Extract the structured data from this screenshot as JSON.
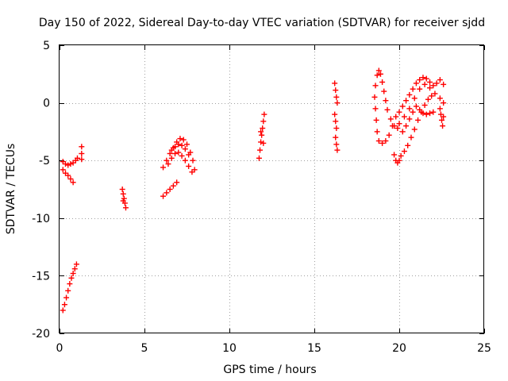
{
  "chart_data": {
    "type": "scatter",
    "title": "Day 150 of 2022, Sidereal Day-to-day VTEC variation (SDTVAR) for receiver sjdd",
    "xlabel": "GPS time / hours",
    "ylabel": "SDTVAR / TECUs",
    "xlim": [
      0,
      25
    ],
    "ylim": [
      -20,
      5
    ],
    "xticks": [
      0,
      5,
      10,
      15,
      20,
      25
    ],
    "yticks": [
      -20,
      -15,
      -10,
      -5,
      0,
      5
    ],
    "grid": true,
    "marker": "plus",
    "color": "#ff0000",
    "series": [
      {
        "name": "sdtvar",
        "points": [
          [
            0.2,
            -18.0
          ],
          [
            0.3,
            -17.5
          ],
          [
            0.4,
            -16.9
          ],
          [
            0.5,
            -16.3
          ],
          [
            0.6,
            -15.7
          ],
          [
            0.7,
            -15.2
          ],
          [
            0.8,
            -14.8
          ],
          [
            0.9,
            -14.4
          ],
          [
            1.0,
            -14.0
          ],
          [
            0.2,
            -5.8
          ],
          [
            0.35,
            -6.1
          ],
          [
            0.5,
            -6.3
          ],
          [
            0.65,
            -6.6
          ],
          [
            0.8,
            -6.9
          ],
          [
            0.2,
            -5.1
          ],
          [
            0.35,
            -5.3
          ],
          [
            0.5,
            -5.4
          ],
          [
            0.65,
            -5.3
          ],
          [
            0.8,
            -5.2
          ],
          [
            0.95,
            -5.0
          ],
          [
            1.05,
            -4.8
          ],
          [
            1.3,
            -3.8
          ],
          [
            1.3,
            -4.4
          ],
          [
            1.3,
            -4.9
          ],
          [
            3.7,
            -7.5
          ],
          [
            3.75,
            -7.9
          ],
          [
            3.8,
            -8.3
          ],
          [
            3.85,
            -8.7
          ],
          [
            3.9,
            -9.1
          ],
          [
            3.75,
            -8.5
          ],
          [
            6.1,
            -8.1
          ],
          [
            6.3,
            -7.8
          ],
          [
            6.5,
            -7.5
          ],
          [
            6.7,
            -7.2
          ],
          [
            6.9,
            -6.9
          ],
          [
            6.1,
            -5.6
          ],
          [
            6.3,
            -5.0
          ],
          [
            6.5,
            -4.4
          ],
          [
            6.7,
            -3.9
          ],
          [
            6.9,
            -3.4
          ],
          [
            7.1,
            -3.1
          ],
          [
            7.3,
            -3.2
          ],
          [
            7.5,
            -3.6
          ],
          [
            7.7,
            -4.3
          ],
          [
            7.85,
            -5.0
          ],
          [
            7.95,
            -5.8
          ],
          [
            6.4,
            -5.3
          ],
          [
            6.6,
            -4.8
          ],
          [
            6.8,
            -4.4
          ],
          [
            7.0,
            -4.3
          ],
          [
            7.2,
            -4.6
          ],
          [
            7.4,
            -5.0
          ],
          [
            7.6,
            -5.5
          ],
          [
            7.8,
            -6.0
          ],
          [
            6.6,
            -4.1
          ],
          [
            6.8,
            -3.8
          ],
          [
            7.0,
            -3.6
          ],
          [
            7.2,
            -3.7
          ],
          [
            7.4,
            -4.0
          ],
          [
            7.6,
            -4.5
          ],
          [
            11.75,
            -4.8
          ],
          [
            11.8,
            -4.1
          ],
          [
            11.85,
            -3.4
          ],
          [
            11.9,
            -2.8
          ],
          [
            11.95,
            -2.2
          ],
          [
            12.0,
            -1.6
          ],
          [
            12.05,
            -1.0
          ],
          [
            11.85,
            -2.5
          ],
          [
            12.0,
            -3.5
          ],
          [
            16.2,
            1.7
          ],
          [
            16.25,
            1.1
          ],
          [
            16.3,
            0.5
          ],
          [
            16.35,
            0.0
          ],
          [
            16.2,
            -1.0
          ],
          [
            16.25,
            -1.6
          ],
          [
            16.3,
            -2.2
          ],
          [
            16.25,
            -3.0
          ],
          [
            16.3,
            -3.6
          ],
          [
            16.35,
            -4.1
          ],
          [
            18.7,
            2.4
          ],
          [
            18.8,
            2.8
          ],
          [
            18.9,
            2.5
          ],
          [
            19.0,
            1.8
          ],
          [
            19.1,
            1.0
          ],
          [
            19.2,
            0.2
          ],
          [
            19.3,
            -0.6
          ],
          [
            19.5,
            -1.4
          ],
          [
            19.7,
            -2.0
          ],
          [
            19.9,
            -2.2
          ],
          [
            18.6,
            1.5
          ],
          [
            18.55,
            0.5
          ],
          [
            18.6,
            -0.5
          ],
          [
            18.65,
            -1.5
          ],
          [
            18.7,
            -2.5
          ],
          [
            18.8,
            -3.3
          ],
          [
            19.0,
            -3.5
          ],
          [
            19.2,
            -3.3
          ],
          [
            19.4,
            -2.8
          ],
          [
            19.6,
            -2.0
          ],
          [
            19.8,
            -1.2
          ],
          [
            20.0,
            -0.8
          ],
          [
            20.2,
            -0.3
          ],
          [
            20.4,
            0.2
          ],
          [
            20.6,
            0.7
          ],
          [
            20.8,
            1.2
          ],
          [
            21.0,
            1.7
          ],
          [
            21.2,
            2.0
          ],
          [
            21.4,
            2.2
          ],
          [
            21.6,
            2.1
          ],
          [
            21.8,
            1.8
          ],
          [
            22.0,
            1.5
          ],
          [
            22.2,
            1.7
          ],
          [
            22.4,
            2.0
          ],
          [
            22.6,
            1.6
          ],
          [
            19.7,
            -4.5
          ],
          [
            19.8,
            -5.0
          ],
          [
            19.9,
            -5.2
          ],
          [
            20.0,
            -5.0
          ],
          [
            20.1,
            -4.6
          ],
          [
            20.3,
            -4.2
          ],
          [
            20.5,
            -3.7
          ],
          [
            20.7,
            -3.0
          ],
          [
            20.9,
            -2.3
          ],
          [
            21.1,
            -1.5
          ],
          [
            21.3,
            -0.8
          ],
          [
            21.5,
            -0.2
          ],
          [
            21.7,
            0.3
          ],
          [
            21.9,
            0.6
          ],
          [
            20.2,
            -2.5
          ],
          [
            20.4,
            -2.0
          ],
          [
            20.6,
            -1.4
          ],
          [
            20.8,
            -0.8
          ],
          [
            21.0,
            -0.3
          ],
          [
            21.2,
            -0.6
          ],
          [
            21.4,
            -0.9
          ],
          [
            21.6,
            -1.0
          ],
          [
            21.8,
            -0.9
          ],
          [
            22.0,
            -0.8
          ],
          [
            20.0,
            -1.8
          ],
          [
            20.3,
            -1.2
          ],
          [
            20.6,
            -0.5
          ],
          [
            20.9,
            0.4
          ],
          [
            21.2,
            1.2
          ],
          [
            21.5,
            1.6
          ],
          [
            21.8,
            1.3
          ],
          [
            22.1,
            0.8
          ],
          [
            22.4,
            0.4
          ],
          [
            22.6,
            0.0
          ],
          [
            22.4,
            -0.5
          ],
          [
            22.45,
            -1.0
          ],
          [
            22.5,
            -1.5
          ],
          [
            22.55,
            -2.0
          ],
          [
            22.6,
            -1.2
          ]
        ]
      }
    ]
  }
}
